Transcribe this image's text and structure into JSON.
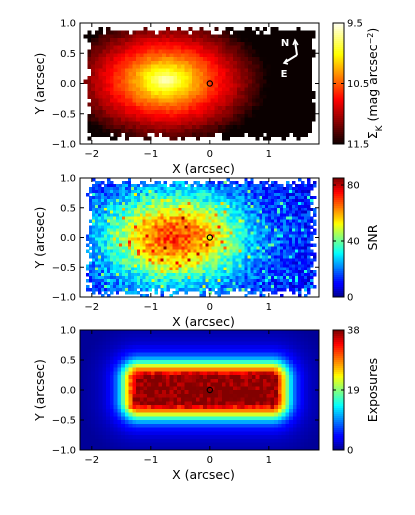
{
  "chart_data": [
    {
      "type": "heatmap",
      "quantity": "surface brightness",
      "xlabel": "X (arcsec)",
      "ylabel": "Y (arcsec)",
      "xlim": [
        -2.2,
        1.85
      ],
      "ylim": [
        -1.0,
        1.0
      ],
      "x_ticks": [
        -2,
        -1,
        0,
        1
      ],
      "x_tick_labels": [
        "−2",
        "−1",
        "0",
        "1"
      ],
      "y_ticks": [
        1.0,
        0.5,
        0.0,
        -0.5,
        -1.0
      ],
      "y_tick_labels": [
        "1.0",
        "0.5",
        "0.0",
        "−0.5",
        "−1.0"
      ],
      "colorbar": {
        "label": "Σ_K (mag arcsec^−2)",
        "label_main": "Σ",
        "label_sub": "K",
        "label_unit": "(mag arcsec",
        "label_sup": "−2",
        "label_close": ")",
        "ticks": [
          9.5,
          10.5,
          11.5
        ],
        "tick_labels": [
          "9.5",
          "10.5",
          "11.5"
        ],
        "colormap": "hot (inverted)",
        "range": [
          9.5,
          11.5
        ]
      },
      "field_footprint": {
        "x_range": [
          -2.05,
          1.75
        ],
        "y_range": [
          -0.88,
          0.88
        ]
      },
      "peak": {
        "x": -0.75,
        "y": 0.05,
        "value": 9.5
      },
      "marker": {
        "x": 0.0,
        "y": 0.0,
        "shape": "circle"
      },
      "compass": {
        "north_label": "N",
        "east_label": "E"
      }
    },
    {
      "type": "heatmap",
      "quantity": "signal-to-noise",
      "xlabel": "X (arcsec)",
      "ylabel": "Y (arcsec)",
      "xlim": [
        -2.2,
        1.85
      ],
      "ylim": [
        -1.0,
        1.0
      ],
      "x_ticks": [
        -2,
        -1,
        0,
        1
      ],
      "x_tick_labels": [
        "−2",
        "−1",
        "0",
        "1"
      ],
      "y_ticks": [
        1.0,
        0.5,
        0.0,
        -0.5,
        -1.0
      ],
      "y_tick_labels": [
        "1.0",
        "0.5",
        "0.0",
        "−0.5",
        "−1.0"
      ],
      "colorbar": {
        "label": "SNR",
        "ticks": [
          0,
          40,
          80
        ],
        "tick_labels": [
          "0",
          "40",
          "80"
        ],
        "colormap": "jet",
        "range": [
          0,
          85
        ]
      },
      "field_footprint": {
        "x_range": [
          -2.05,
          1.75
        ],
        "y_range": [
          -0.92,
          0.92
        ]
      },
      "peak": {
        "x": -0.6,
        "y": 0.0,
        "value": 60
      },
      "marker": {
        "x": 0.0,
        "y": 0.0,
        "shape": "circle"
      }
    },
    {
      "type": "heatmap",
      "quantity": "number of exposures",
      "xlabel": "X (arcsec)",
      "ylabel": "Y (arcsec)",
      "xlim": [
        -2.2,
        1.85
      ],
      "ylim": [
        -1.0,
        1.0
      ],
      "x_ticks": [
        -2,
        -1,
        0,
        1
      ],
      "x_tick_labels": [
        "−2",
        "−1",
        "0",
        "1"
      ],
      "y_ticks": [
        1.0,
        0.5,
        0.0,
        -0.5,
        -1.0
      ],
      "y_tick_labels": [
        "1.0",
        "0.5",
        "0.0",
        "−0.5",
        "−1.0"
      ],
      "colorbar": {
        "label": "Exposures",
        "ticks": [
          0,
          19,
          38
        ],
        "tick_labels": [
          "0",
          "19",
          "38"
        ],
        "colormap": "jet",
        "range": [
          0,
          38
        ]
      },
      "plateau": {
        "x_range": [
          -1.35,
          1.2
        ],
        "y_range": [
          -0.33,
          0.33
        ],
        "value": 34
      },
      "marker": {
        "x": 0.0,
        "y": 0.0,
        "shape": "circle"
      }
    }
  ]
}
